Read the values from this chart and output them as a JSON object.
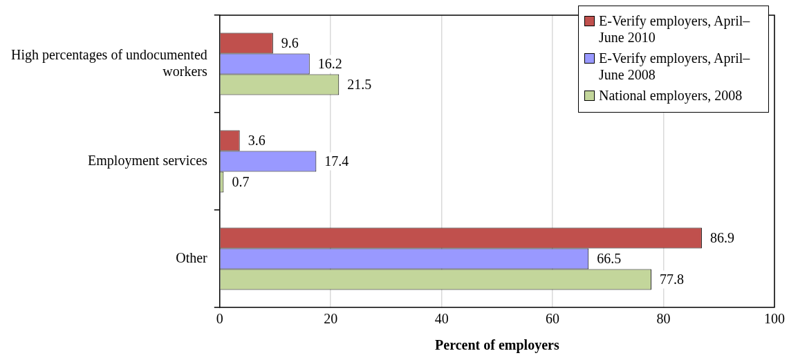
{
  "chart_data": {
    "type": "bar",
    "orientation": "horizontal",
    "xlabel": "Percent of employers",
    "categories": [
      "High percentages of undocumented workers",
      "Employment services",
      "Other"
    ],
    "series": [
      {
        "name": "E-Verify employers, April–June 2010",
        "color": "#c0504d",
        "values": [
          9.6,
          3.6,
          86.9
        ]
      },
      {
        "name": "E-Verify employers, April–June 2008",
        "color": "#9999ff",
        "values": [
          16.2,
          17.4,
          66.5
        ]
      },
      {
        "name": "National employers, 2008",
        "color": "#c3d69b",
        "values": [
          21.5,
          0.7,
          77.8
        ]
      }
    ],
    "xlim": [
      0,
      100
    ],
    "xticks": [
      0,
      20,
      40,
      60,
      80,
      100
    ],
    "grid": "x",
    "legend": "top right",
    "data_labels": true
  }
}
